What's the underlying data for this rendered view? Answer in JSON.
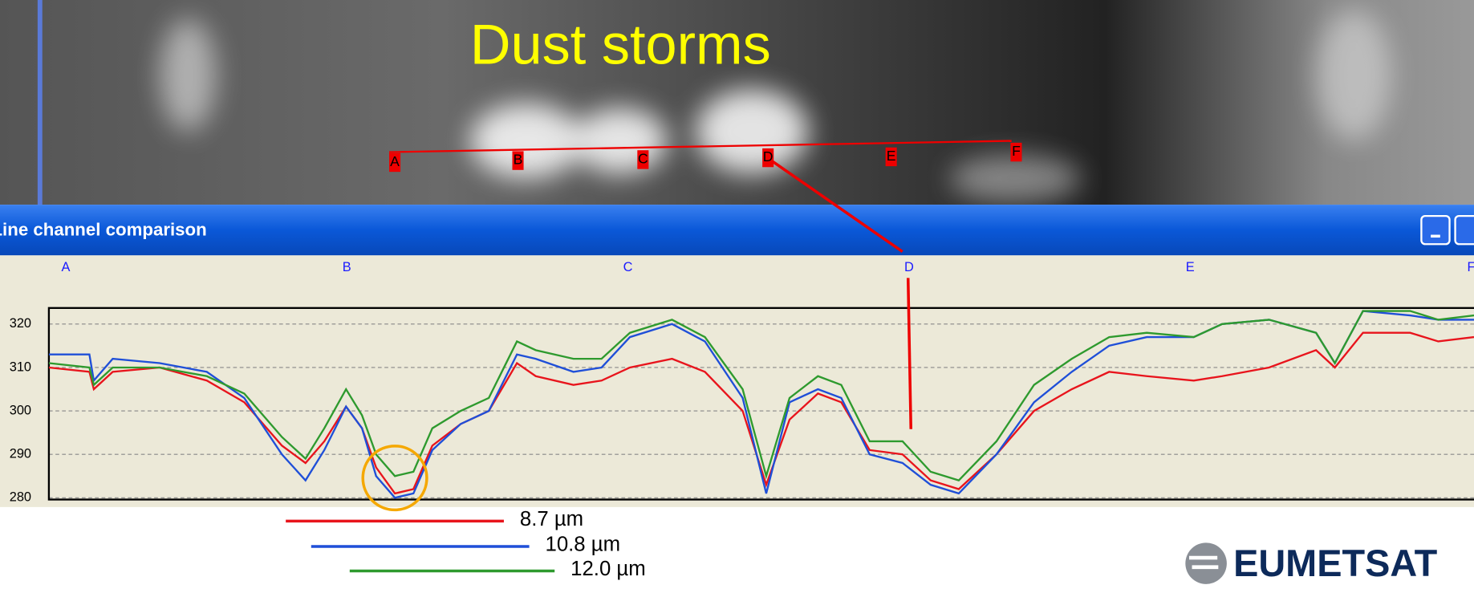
{
  "slide_title": "Dust storms",
  "window_title": "Line channel comparison",
  "map_points": [
    "A",
    "B",
    "C",
    "D",
    "E",
    "F"
  ],
  "logo": "EUMETSAT",
  "chart_data": {
    "type": "line",
    "x": [
      -0.06,
      0.084,
      0.1,
      0.167,
      0.334,
      0.502,
      0.635,
      0.769,
      0.853,
      0.92,
      0.997,
      1.054,
      1.104,
      1.171,
      1.237,
      1.304,
      1.405,
      1.505,
      1.605,
      1.672,
      1.806,
      1.906,
      2.007,
      2.157,
      2.274,
      2.408,
      2.492,
      2.575,
      2.676,
      2.759,
      2.86,
      2.977,
      3.077,
      3.177,
      3.311,
      3.445,
      3.579,
      3.712,
      3.846,
      4.013,
      4.114,
      4.281,
      4.448,
      4.515,
      4.615,
      4.783,
      4.883,
      5.01
    ],
    "series": [
      {
        "name": "8.7 µm",
        "color": "#e8141c",
        "values": [
          310,
          309,
          305,
          309,
          310,
          307,
          302,
          292,
          288,
          293,
          301,
          296,
          287,
          281,
          282,
          292,
          297,
          300,
          311,
          308,
          306,
          307,
          310,
          312,
          309,
          300,
          283,
          298,
          304,
          302,
          291,
          290,
          284,
          282,
          290,
          300,
          305,
          309,
          308,
          307,
          308,
          310,
          314,
          310,
          318,
          318,
          316,
          317
        ]
      },
      {
        "name": "10.8 µm",
        "color": "#1f4fd8",
        "values": [
          313,
          313,
          307,
          312,
          311,
          309,
          303,
          290,
          284,
          291,
          301,
          296,
          285,
          280,
          281,
          291,
          297,
          300,
          313,
          312,
          309,
          310,
          317,
          320,
          316,
          303,
          281,
          302,
          305,
          303,
          290,
          288,
          283,
          281,
          290,
          302,
          309,
          315,
          317,
          317,
          320,
          321,
          318,
          311,
          323,
          322,
          321,
          321
        ]
      },
      {
        "name": "12.0 µm",
        "color": "#2e9a2e",
        "values": [
          311,
          310,
          306,
          310,
          310,
          308,
          304,
          294,
          289,
          296,
          305,
          299,
          290,
          285,
          286,
          296,
          300,
          303,
          316,
          314,
          312,
          312,
          318,
          321,
          317,
          305,
          285,
          303,
          308,
          306,
          293,
          293,
          286,
          284,
          293,
          306,
          312,
          317,
          318,
          317,
          320,
          321,
          318,
          311,
          323,
          323,
          321,
          322
        ]
      }
    ],
    "xlim": [
      -0.06,
      5.01
    ],
    "xticks": [
      {
        "value": 0,
        "label": "A"
      },
      {
        "value": 1,
        "label": "B"
      },
      {
        "value": 2,
        "label": "C"
      },
      {
        "value": 3,
        "label": "D"
      },
      {
        "value": 4,
        "label": "E"
      },
      {
        "value": 5,
        "label": "F"
      }
    ],
    "ylim": [
      279.6,
      323.7
    ],
    "yticks": [
      280,
      290,
      300,
      310,
      320
    ],
    "grid": true
  }
}
